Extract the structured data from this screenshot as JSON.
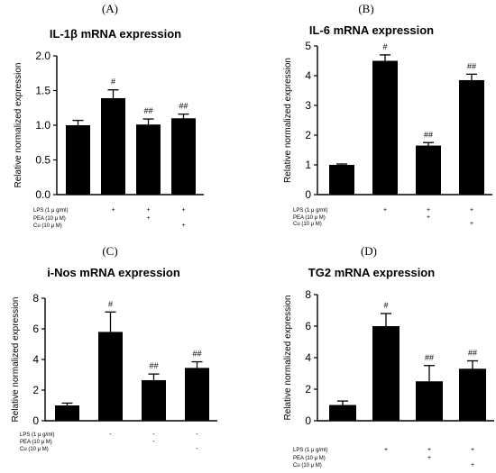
{
  "chart_data": [
    {
      "type": "bar",
      "panel": "(A)",
      "title": "IL-1β mRNA expression",
      "ylabel": "Relative normalized expression",
      "ylim": [
        0,
        2.0
      ],
      "yticks": [
        "0.0",
        "0.5",
        "1.0",
        "1.5",
        "2.0"
      ],
      "values": [
        1.0,
        1.39,
        1.01,
        1.1
      ],
      "errors": [
        0.07,
        0.12,
        0.08,
        0.06
      ],
      "sig": [
        "",
        "#",
        "##",
        "##"
      ],
      "treatment_labels": [
        "LPS (1 μ g/ml)",
        "PEA (10 μ M)",
        "Cu  (10 μ M)"
      ],
      "treatment_marks": [
        [
          "",
          "+",
          "+",
          "+"
        ],
        [
          "",
          "",
          "+",
          ""
        ],
        [
          "",
          "",
          "",
          "+"
        ]
      ]
    },
    {
      "type": "bar",
      "panel": "(B)",
      "title": "IL-6 mRNA expression",
      "ylabel": "Relative normalized expression",
      "ylim": [
        0,
        5
      ],
      "yticks": [
        "0",
        "1",
        "2",
        "3",
        "4",
        "5"
      ],
      "values": [
        1.0,
        4.5,
        1.65,
        3.85
      ],
      "errors": [
        0.03,
        0.2,
        0.1,
        0.2
      ],
      "sig": [
        "",
        "#",
        "##",
        "##"
      ],
      "treatment_labels": [
        "LPS (1 μ g/ml)",
        "PEA (10 μ M)",
        "Cu  (10 μ M)"
      ],
      "treatment_marks": [
        [
          "",
          "+",
          "+",
          "+"
        ],
        [
          "",
          "",
          "+",
          ""
        ],
        [
          "",
          "",
          "",
          "+"
        ]
      ]
    },
    {
      "type": "bar",
      "panel": "(C)",
      "title": "i-Nos mRNA expression",
      "ylabel": "Relative normalized expression",
      "ylim": [
        0,
        8
      ],
      "yticks": [
        "0",
        "2",
        "4",
        "6",
        "8"
      ],
      "values": [
        1.0,
        5.8,
        2.65,
        3.45
      ],
      "errors": [
        0.15,
        1.3,
        0.4,
        0.4
      ],
      "sig": [
        "",
        "#",
        "##",
        "##"
      ],
      "treatment_labels": [
        "LPS (1 μ g/ml)",
        "PEA (10 μ M)",
        "Cu  (10 μ M)"
      ],
      "treatment_marks": [
        [
          "",
          "-",
          "-",
          "-"
        ],
        [
          "",
          "",
          "-",
          ""
        ],
        [
          "",
          "",
          "",
          "-"
        ]
      ]
    },
    {
      "type": "bar",
      "panel": "(D)",
      "title": "TG2 mRNA expression",
      "ylabel": "Relative normalized expression",
      "ylim": [
        0,
        8
      ],
      "yticks": [
        "0",
        "2",
        "4",
        "6",
        "8"
      ],
      "values": [
        1.0,
        6.0,
        2.5,
        3.3
      ],
      "errors": [
        0.25,
        0.8,
        1.0,
        0.5
      ],
      "sig": [
        "",
        "#",
        "##",
        "##"
      ],
      "treatment_labels": [
        "LPS (1 μ g/ml)",
        "PEA (10 μ M)",
        "Cu  (10 μ M)"
      ],
      "treatment_marks": [
        [
          "",
          "+",
          "+",
          "+"
        ],
        [
          "",
          "",
          "+",
          ""
        ],
        [
          "",
          "",
          "",
          "+"
        ]
      ]
    }
  ]
}
